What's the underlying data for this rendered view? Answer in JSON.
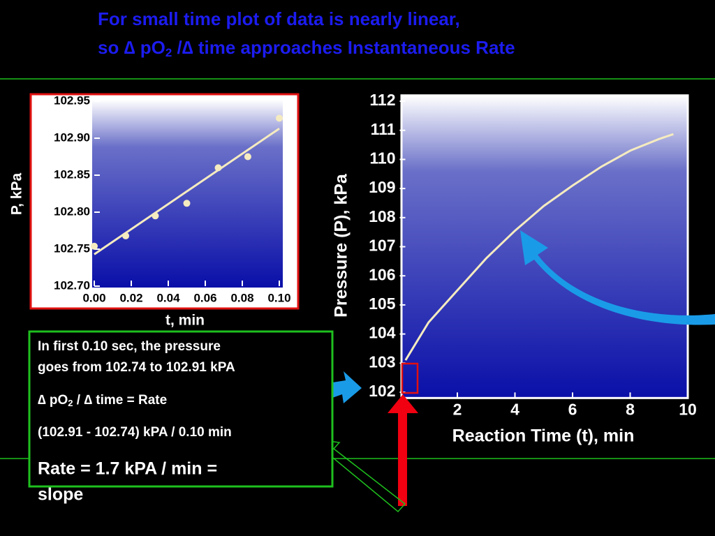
{
  "title_line1": "For small time plot of data is nearly linear,",
  "title_line2": [
    "so ∆ pO",
    "2",
    " /∆ time approaches Instantaneous Rate"
  ],
  "box": {
    "line1": "In first 0.10 sec, the pressure",
    "line2": "goes from  102.74 to 102.91 kPA",
    "line3": [
      "∆ pO",
      "2",
      "  / ∆ time = Rate"
    ],
    "line4": "(102.91 - 102.74) kPA / 0.10 min",
    "line5": "Rate = 1.7 kPA / min =",
    "line6": "slope"
  },
  "chart_data": [
    {
      "type": "scatter",
      "xlabel": "t, min",
      "ylabel": "P, kPa",
      "color": "#f5ebc0",
      "x": [
        0,
        0.017,
        0.033,
        0.05,
        0.067,
        0.083,
        0.1
      ],
      "values": [
        102.754,
        102.768,
        102.795,
        102.812,
        102.86,
        102.875,
        102.927
      ],
      "trendline": {
        "x": [
          0,
          0.1
        ],
        "values": [
          102.743,
          102.913
        ]
      },
      "xlim": [
        0,
        0.1
      ],
      "xticks": [
        {
          "value": 0,
          "label": "0.00"
        },
        0.02,
        0.04,
        0.06,
        0.08,
        {
          "value": 0.1,
          "label": "0.10"
        }
      ],
      "ylim": [
        102.7,
        102.95
      ],
      "yticks": [
        {
          "value": 102.7,
          "label": "102.70"
        },
        102.75,
        {
          "value": 102.8,
          "label": "102.80"
        },
        102.85,
        {
          "value": 102.9,
          "label": "102.90"
        },
        102.95
      ]
    },
    {
      "type": "line",
      "xlabel": "Reaction Time (t), min",
      "ylabel": "Pressure (P), kPa",
      "color": "#f5ebc0",
      "x": [
        0.2,
        1,
        2,
        3,
        4,
        5,
        6,
        7,
        8,
        9,
        9.5
      ],
      "values": [
        103.1,
        104.4,
        105.5,
        106.6,
        107.55,
        108.4,
        109.1,
        109.75,
        110.3,
        110.7,
        110.87
      ],
      "xlim": [
        0,
        10
      ],
      "xticks": [
        2,
        4,
        6,
        8,
        10
      ],
      "ylim": [
        101.8,
        112.2
      ],
      "yticks": [
        102,
        103,
        104,
        105,
        106,
        107,
        108,
        109,
        110,
        111,
        112
      ]
    }
  ]
}
